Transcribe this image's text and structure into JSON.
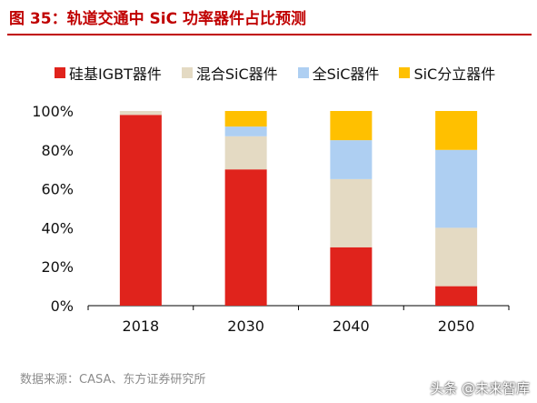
{
  "header": {
    "title": "图 35：轨道交通中 SiC 功率器件占比预测"
  },
  "footer": {
    "source": "数据来源：CASA、东方证券研究所",
    "watermark": "头条 @未来智库"
  },
  "chart_data": {
    "type": "bar",
    "stacked": true,
    "categories": [
      "2018",
      "2030",
      "2040",
      "2050"
    ],
    "series": [
      {
        "name": "硅基IGBT器件",
        "color": "#e0231c",
        "values": [
          98,
          70,
          30,
          10
        ]
      },
      {
        "name": "混合SiC器件",
        "color": "#e4dac3",
        "values": [
          2,
          17,
          35,
          30
        ]
      },
      {
        "name": "全SiC器件",
        "color": "#aecff2",
        "values": [
          0,
          5,
          20,
          40
        ]
      },
      {
        "name": "SiC分立器件",
        "color": "#ffc000",
        "values": [
          0,
          8,
          15,
          20
        ]
      }
    ],
    "ylim": [
      0,
      100
    ],
    "yticks": [
      "0%",
      "20%",
      "40%",
      "60%",
      "80%",
      "100%"
    ],
    "grid": false,
    "legend_position": "top"
  }
}
